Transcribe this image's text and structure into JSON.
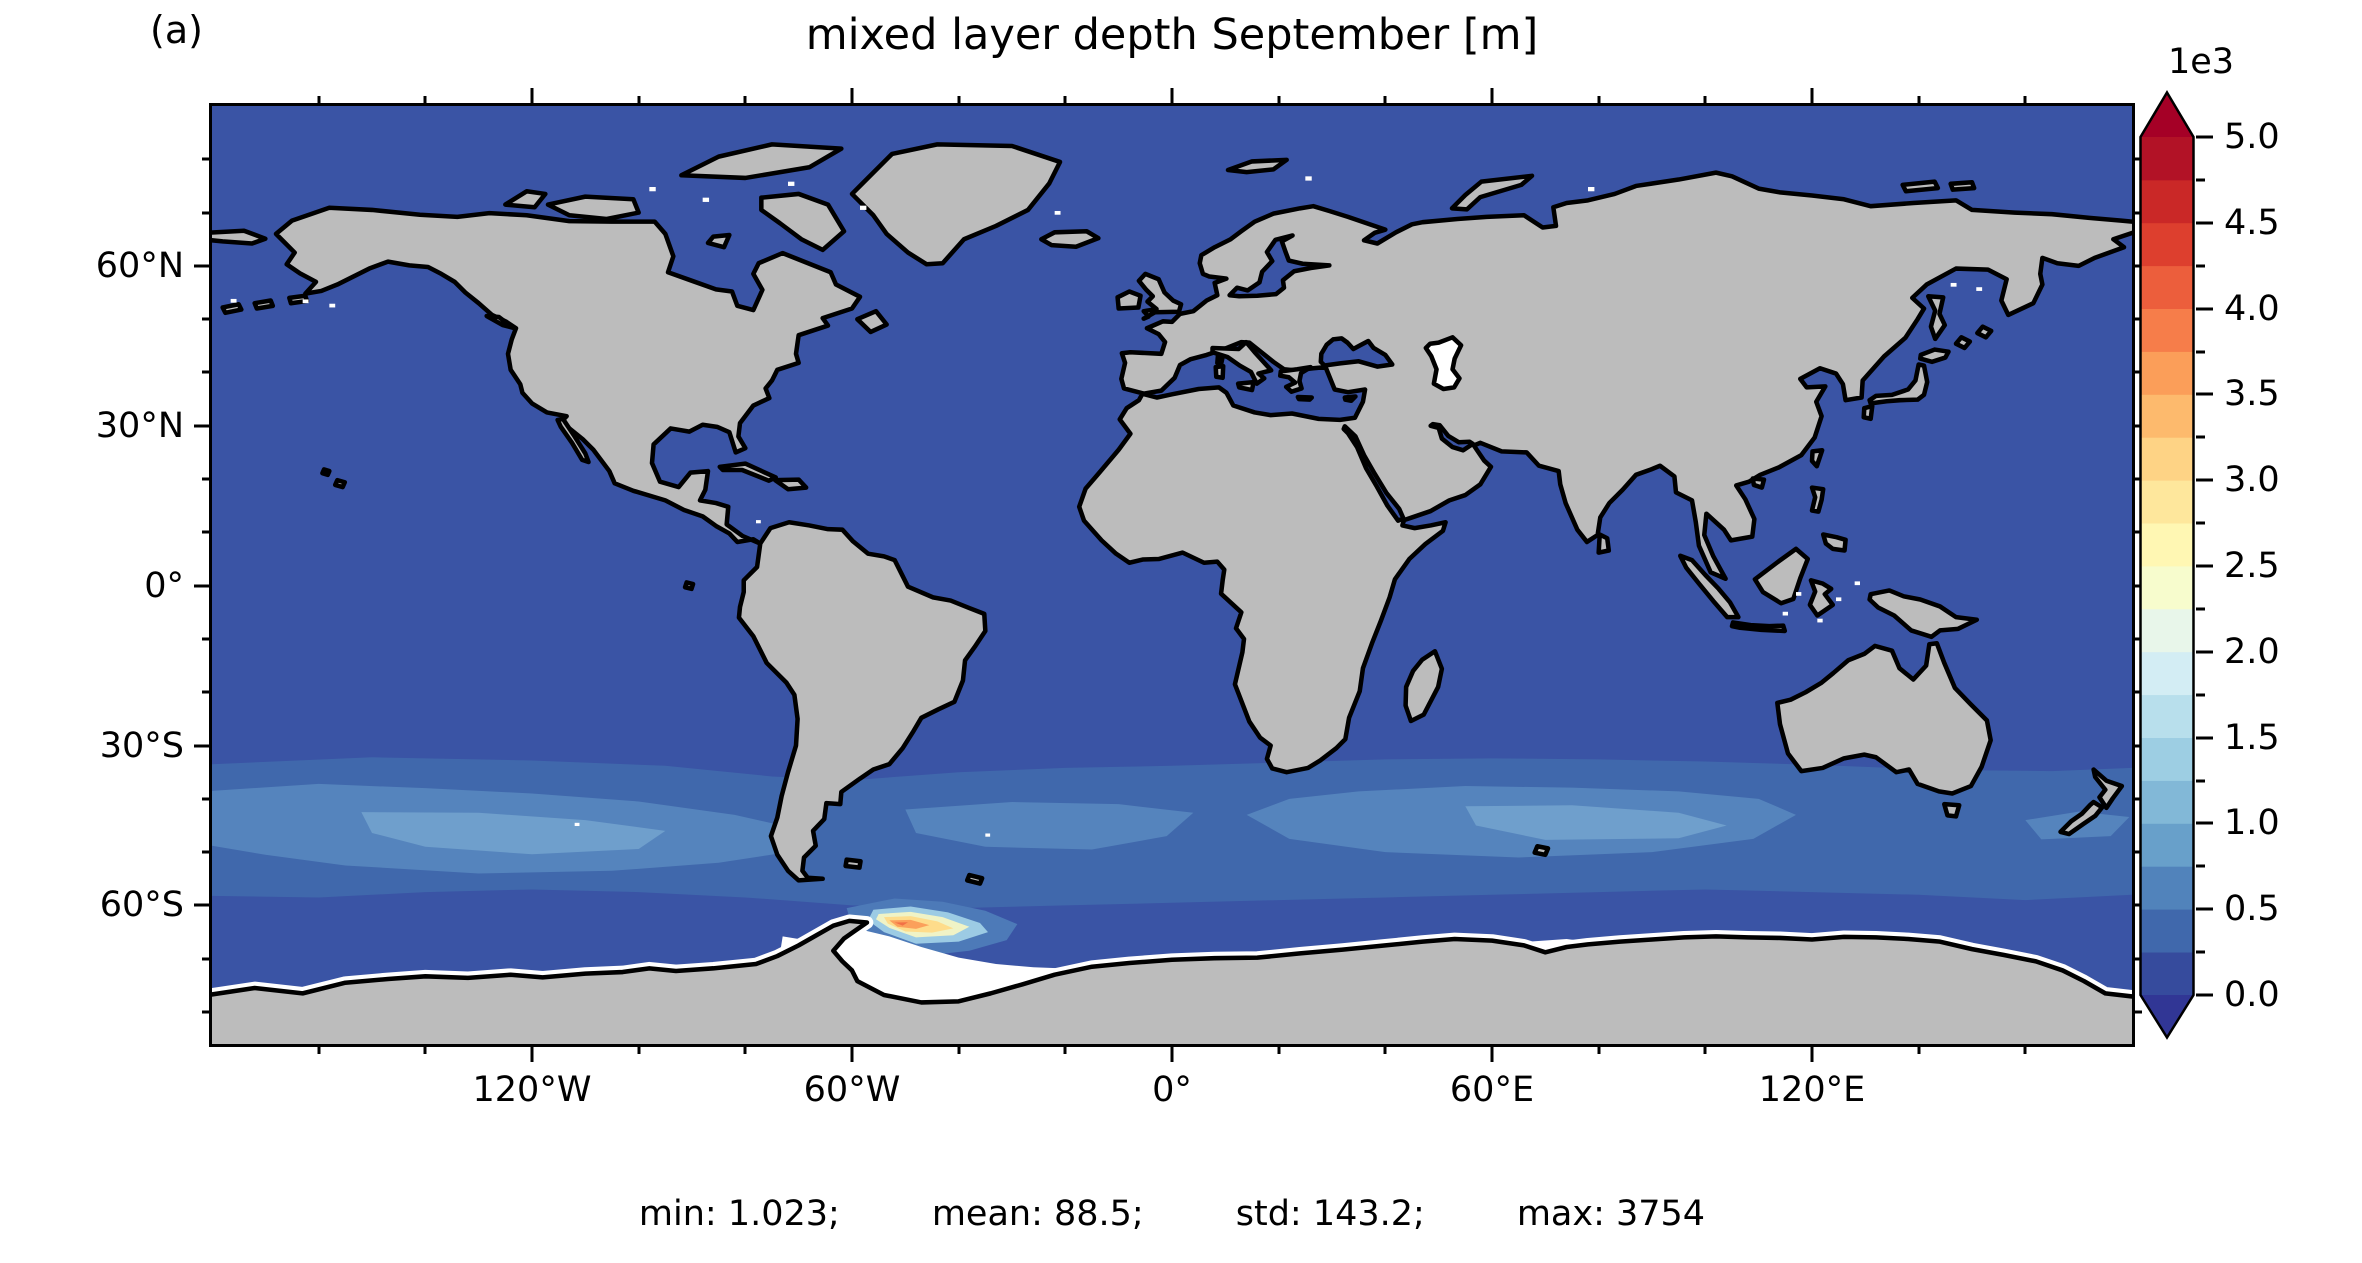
{
  "panel_label": "(a)",
  "title": "mixed layer depth September [m]",
  "stats": {
    "min_label": "min: 1.023;",
    "mean_label": "mean: 88.5;",
    "std_label": "std: 143.2;",
    "max_label": "max: 3754"
  },
  "axes": {
    "lon_range": [
      -180,
      180
    ],
    "lat_range": [
      -86,
      90
    ],
    "x_major_deg": [
      -120,
      -60,
      0,
      60,
      120
    ],
    "x_major_labels": [
      "120°W",
      "60°W",
      "0°",
      "60°E",
      "120°E"
    ],
    "x_minor_deg": [
      -160,
      -140,
      -100,
      -80,
      -40,
      -20,
      20,
      40,
      80,
      100,
      140,
      160
    ],
    "y_major_deg": [
      60,
      30,
      0,
      -30,
      -60
    ],
    "y_major_labels": [
      "60°N",
      "30°N",
      "0°",
      "30°S",
      "60°S"
    ],
    "y_minor_deg": [
      80,
      70,
      50,
      40,
      20,
      10,
      -10,
      -20,
      -40,
      -50,
      -70,
      -80
    ]
  },
  "colorbar": {
    "scale_label": "1e3",
    "tick_labels": [
      "5.0",
      "4.5",
      "4.0",
      "3.5",
      "3.0",
      "2.5",
      "2.0",
      "1.5",
      "1.0",
      "0.5",
      "0.0"
    ],
    "segment_colors": [
      "#364b9d",
      "#4068ac",
      "#5183bb",
      "#68a0ca",
      "#82b8d7",
      "#9dcee3",
      "#b8dfec",
      "#d3edf4",
      "#e8f6ea",
      "#f7fccd",
      "#fff7b3",
      "#fee79c",
      "#fed385",
      "#fdba6d",
      "#fb9e59",
      "#f67d4a",
      "#ec5e3c",
      "#dd3f2e",
      "#ca2827",
      "#b21226"
    ],
    "under_color": "#313695",
    "over_color": "#a50026"
  },
  "map_colors": {
    "ocean_base": "#3a54a5",
    "land": "#bcbcbc",
    "coastline": "#000000",
    "no_data": "#ffffff",
    "band_250_500": "#4068ac",
    "band_500_750": "#5584bd",
    "band_750_1000": "#6f9fcc"
  },
  "chart_data": {
    "type": "heatmap",
    "title": "mixed layer depth September [m]",
    "variable": "mixed layer depth",
    "month": "September",
    "units": "m",
    "projection": "global longitude-latitude map (PlateCarree)",
    "x_range_deg": [
      -180,
      180
    ],
    "y_range_deg": [
      -86,
      90
    ],
    "x_tick_labels": [
      "120°W",
      "60°W",
      "0°",
      "60°E",
      "120°E"
    ],
    "y_tick_labels": [
      "60°N",
      "30°N",
      "0°",
      "30°S",
      "60°S"
    ],
    "colorbar": {
      "orientation": "vertical",
      "scale_factor_label": "1e3",
      "range_m": [
        0,
        5000
      ],
      "tick_values_1e3": [
        0.0,
        0.5,
        1.0,
        1.5,
        2.0,
        2.5,
        3.0,
        3.5,
        4.0,
        4.5,
        5.0
      ],
      "level_step_m": 250,
      "colormap": "RdYlBu_r",
      "extend": "both"
    },
    "stats": {
      "min": 1.023,
      "mean": 88.5,
      "std": 143.2,
      "max": 3754
    },
    "legend_position": "right",
    "grid": false,
    "features": [
      "Northern-hemisphere and tropical oceans uniformly shallow (< 250 m, dark blue) in September",
      "Circumpolar band of deeper mixed layers (250-1000 m, lighter blues) in the Southern Ocean between roughly 35°S and 60°S, most pronounced in the South Pacific and south of Australia",
      "Deep-convection hotspot up to ~3750 m (yellow-orange) in the Weddell Sea near 40-55°W, 60-68°S",
      "White no-data areas along the Antarctic sea-ice zone (Weddell and Ross seas) and over the Caspian Sea",
      "Land masses gray with black coastlines"
    ]
  }
}
